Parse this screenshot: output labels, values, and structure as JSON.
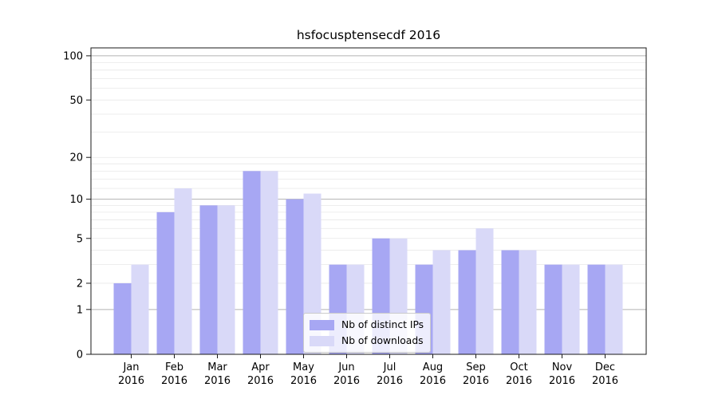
{
  "chart_data": {
    "type": "bar",
    "title": "hsfocusptensecdf 2016",
    "x": {
      "categories": [
        "Jan",
        "Feb",
        "Mar",
        "Apr",
        "May",
        "Jun",
        "Jul",
        "Aug",
        "Sep",
        "Oct",
        "Nov",
        "Dec"
      ],
      "year_label": "2016"
    },
    "series": [
      {
        "name": "Nb of distinct IPs",
        "color": "#a7a7f3",
        "values": [
          2,
          8,
          9,
          16,
          10,
          3,
          5,
          3,
          4,
          4,
          3,
          3
        ]
      },
      {
        "name": "Nb of downloads",
        "color": "#d9d9f8",
        "values": [
          3,
          12,
          9,
          16,
          11,
          3,
          5,
          4,
          6,
          4,
          3,
          3
        ]
      }
    ],
    "y_axis": {
      "scale": "log1p",
      "tick_values": [
        0,
        1,
        2,
        5,
        10,
        20,
        50,
        100
      ],
      "tick_labels": [
        "0",
        "1",
        "2",
        "5",
        "10",
        "20",
        "50",
        "100"
      ],
      "major_grid_values": [
        1,
        10,
        100
      ],
      "minor_grid_values": [
        2,
        3,
        4,
        5,
        6,
        7,
        8,
        9,
        12,
        14,
        16,
        18,
        20,
        30,
        40,
        50,
        60,
        70,
        80,
        90
      ],
      "ylim": [
        0,
        113
      ]
    },
    "grid": true,
    "legend": {
      "entries": [
        "Nb of distinct IPs",
        "Nb of downloads"
      ],
      "position": "lower center"
    },
    "colors": {
      "series_dark": "#a7a7f3",
      "series_light": "#d9d9f8",
      "major_grid": "#b3b3b3",
      "minor_grid": "#e8e8e8",
      "spine": "#1a1a1a",
      "background": "#ffffff"
    }
  }
}
